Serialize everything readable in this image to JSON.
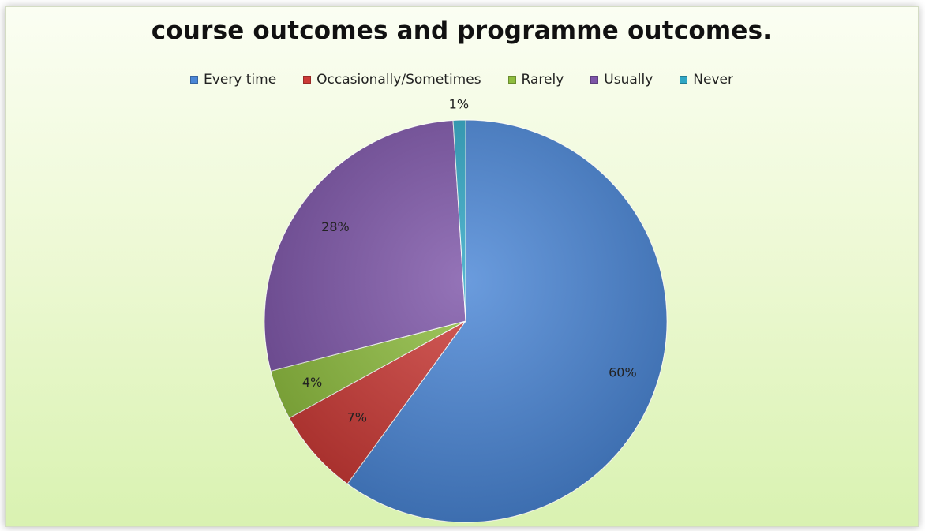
{
  "chart_data": {
    "type": "pie",
    "title": "course outcomes and programme outcomes.",
    "legend_position": "top",
    "categories": [
      "Every time",
      "Occasionally/Sometimes",
      "Rarely",
      "Usually",
      "Never"
    ],
    "values": [
      60,
      7,
      4,
      28,
      1
    ],
    "labels": [
      "60%",
      "7%",
      "4%",
      "28%",
      "1%"
    ],
    "colors": [
      "#4a86d6",
      "#cc3a36",
      "#8ebd3e",
      "#7d55a8",
      "#2fa6c4"
    ]
  }
}
